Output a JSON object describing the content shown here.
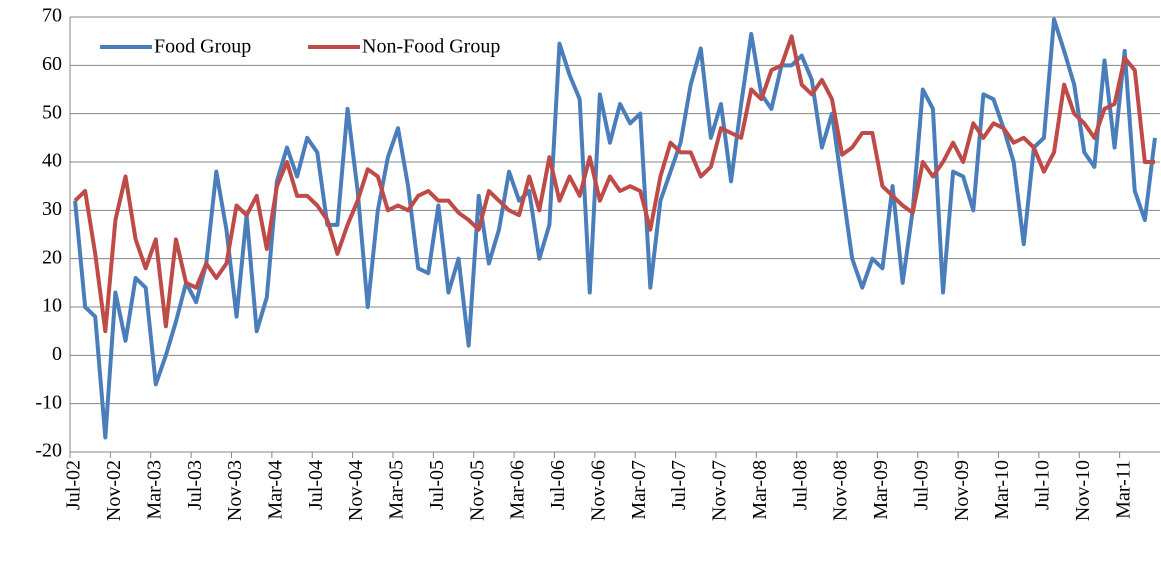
{
  "chart_data": {
    "type": "line",
    "categories": [
      "Jul-02",
      null,
      null,
      null,
      "Nov-02",
      null,
      null,
      null,
      "Mar-03",
      null,
      null,
      null,
      "Jul-03",
      null,
      null,
      null,
      "Nov-03",
      null,
      null,
      null,
      "Mar-04",
      null,
      null,
      null,
      "Jul-04",
      null,
      null,
      null,
      "Nov-04",
      null,
      null,
      null,
      "Mar-05",
      null,
      null,
      null,
      "Jul-05",
      null,
      null,
      null,
      "Nov-05",
      null,
      null,
      null,
      "Mar-06",
      null,
      null,
      null,
      "Jul-06",
      null,
      null,
      null,
      "Nov-06",
      null,
      null,
      null,
      "Mar-07",
      null,
      null,
      null,
      "Jul-07",
      null,
      null,
      null,
      "Nov-07",
      null,
      null,
      null,
      "Mar-08",
      null,
      null,
      null,
      "Jul-08",
      null,
      null,
      null,
      "Nov-08",
      null,
      null,
      null,
      "Mar-09",
      null,
      null,
      null,
      "Jul-09",
      null,
      null,
      null,
      "Nov-09",
      null,
      null,
      null,
      "Mar-10",
      null,
      null,
      null,
      "Jul-10",
      null,
      null,
      null,
      "Nov-10",
      null,
      null,
      null,
      "Mar-11",
      null,
      null,
      null
    ],
    "series": [
      {
        "name": "Food Group",
        "color": "#4a7ebb",
        "values": [
          32,
          10,
          8,
          -17,
          13,
          3,
          16,
          14,
          -6,
          0,
          7,
          15,
          11,
          19,
          38,
          26,
          8,
          29,
          5,
          12,
          36,
          43,
          37,
          45,
          42,
          27,
          27,
          51,
          34,
          10,
          30,
          41,
          47,
          35,
          18,
          17,
          31,
          13,
          20,
          2,
          33,
          19,
          26,
          38,
          32,
          34,
          20,
          27,
          64.5,
          58,
          53,
          13,
          54,
          44,
          52,
          48,
          50,
          14,
          32,
          38,
          44,
          56,
          63.5,
          45,
          52,
          36,
          52,
          66.5,
          54,
          51,
          60,
          60,
          62,
          57,
          43,
          50,
          35,
          20,
          14,
          20,
          18,
          35,
          15,
          30,
          55,
          51,
          13,
          38,
          37,
          30,
          54,
          53,
          47,
          40,
          23,
          43,
          45,
          69.5,
          63,
          56,
          42,
          39,
          61,
          43,
          63,
          34,
          28,
          45
        ]
      },
      {
        "name": "Non-Food Group",
        "color": "#be4b48",
        "values": [
          32,
          34,
          21,
          5,
          28,
          37,
          24,
          18,
          24,
          6,
          24,
          15,
          14,
          19,
          16,
          19,
          31,
          29,
          33,
          22,
          35,
          40,
          33,
          33,
          31,
          28,
          21,
          27,
          32,
          38.5,
          37,
          30,
          31,
          30,
          33,
          34,
          32,
          32,
          29.5,
          28,
          26,
          34,
          32,
          30,
          29,
          37,
          30,
          41,
          32,
          37,
          33,
          41,
          32,
          37,
          34,
          35,
          34,
          26,
          37,
          44,
          42,
          42,
          37,
          39,
          47,
          46,
          45,
          55,
          53,
          59,
          60,
          66,
          56,
          54,
          57,
          53,
          41.5,
          43,
          46,
          46,
          35,
          33,
          31,
          29.5,
          40,
          37,
          40,
          44,
          40,
          48,
          45,
          48,
          47,
          44,
          45,
          43,
          38,
          42,
          56,
          50,
          48,
          45,
          51,
          52,
          61.5,
          59,
          40,
          40
        ]
      }
    ],
    "ylim": [
      -20,
      70
    ],
    "yticks": [
      -20,
      -10,
      0,
      10,
      20,
      30,
      40,
      50,
      60,
      70
    ],
    "grid": true,
    "legend": "top-left"
  }
}
